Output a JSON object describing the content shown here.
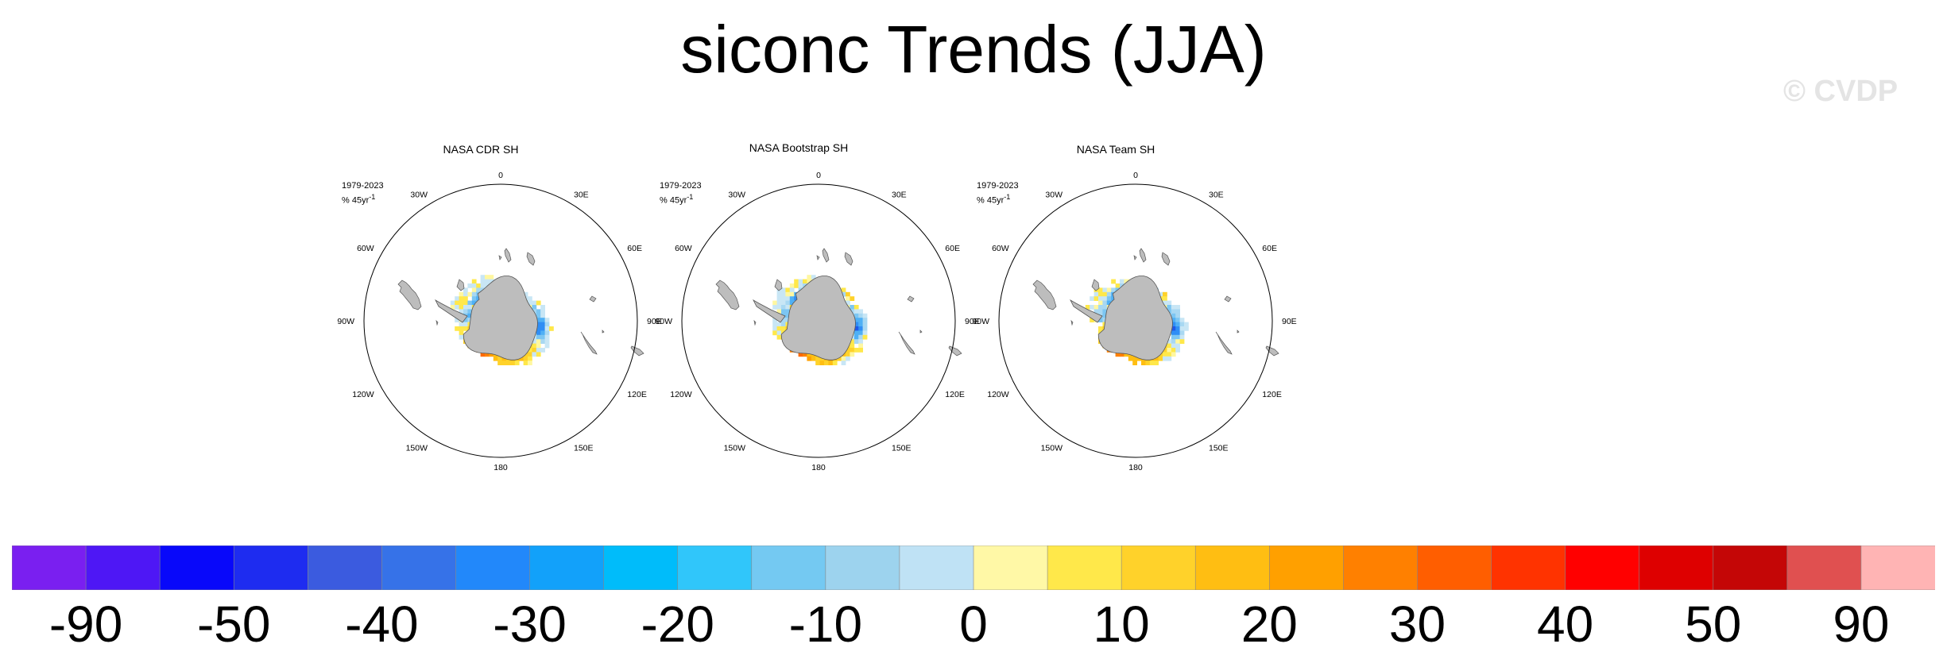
{
  "title": "siconc Trends (JJA)",
  "watermark": "© CVDP",
  "panels": [
    {
      "title": "NASA CDR SH",
      "period": "1979-2023",
      "units": "% 45yr",
      "units_sup": "-1"
    },
    {
      "title": "NASA Bootstrap SH",
      "period": "1979-2023",
      "units": "% 45yr",
      "units_sup": "-1"
    },
    {
      "title": "NASA Team SH",
      "period": "1979-2023",
      "units": "% 45yr",
      "units_sup": "-1"
    }
  ],
  "longitude_labels": [
    {
      "deg": 0,
      "label": "0"
    },
    {
      "deg": 30,
      "label": "30E"
    },
    {
      "deg": 60,
      "label": "60E"
    },
    {
      "deg": 90,
      "label": "90E"
    },
    {
      "deg": 120,
      "label": "120E"
    },
    {
      "deg": 150,
      "label": "150E"
    },
    {
      "deg": 180,
      "label": "180"
    },
    {
      "deg": 210,
      "label": "150W"
    },
    {
      "deg": 240,
      "label": "120W"
    },
    {
      "deg": 270,
      "label": "90W"
    },
    {
      "deg": 300,
      "label": "60W"
    },
    {
      "deg": 330,
      "label": "30W"
    }
  ],
  "colorbar": {
    "colors": [
      "#7a1ff0",
      "#4e17f5",
      "#0808fa",
      "#1e2cf0",
      "#3b5bdf",
      "#3672e8",
      "#2288fa",
      "#12a1fa",
      "#00bcfa",
      "#30c6fa",
      "#74c9f2",
      "#9dd3ee",
      "#bfe2f5",
      "#fff8a6",
      "#ffe84a",
      "#ffd22a",
      "#ffbe12",
      "#ffa000",
      "#ff8000",
      "#ff5e00",
      "#ff3300",
      "#ff0000",
      "#de0000",
      "#c40606",
      "#e05050",
      "#ffb4b4"
    ],
    "labels": [
      "-90",
      "-50",
      "-40",
      "-30",
      "-20",
      "-10",
      "0",
      "10",
      "20",
      "30",
      "40",
      "50",
      "90"
    ]
  },
  "map_colors": {
    "land": "#bdbdbd",
    "land_edge": "#555555"
  }
}
